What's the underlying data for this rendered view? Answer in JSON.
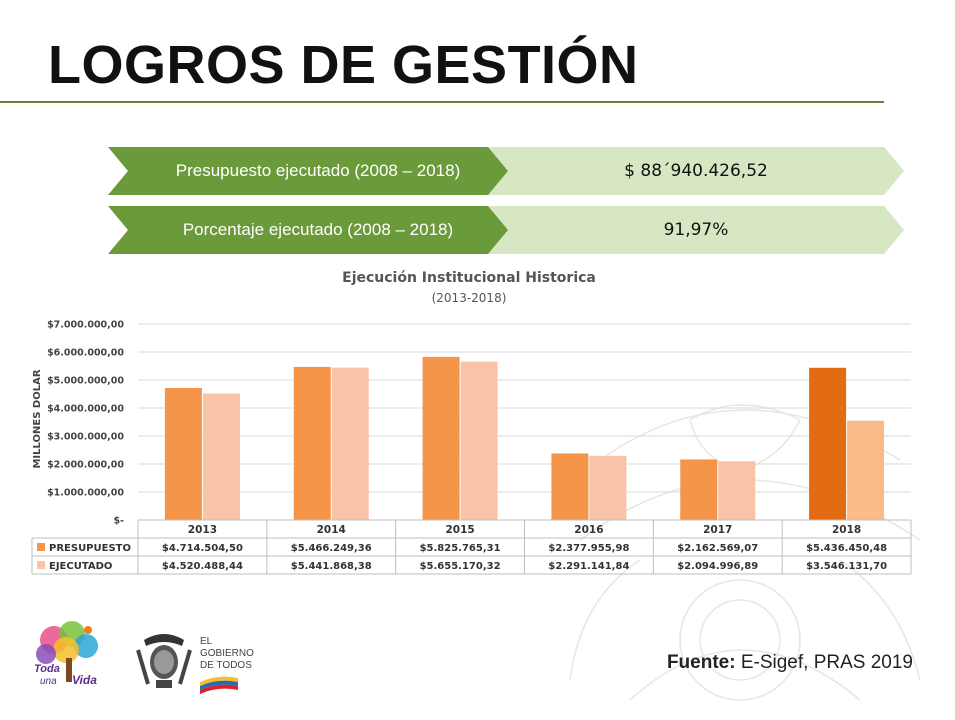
{
  "title": "LOGROS DE GESTIÓN",
  "kpis": [
    {
      "label": "Presupuesto ejecutado (2008 – 2018)",
      "value": "$  88´940.426,52"
    },
    {
      "label": "Porcentaje ejecutado (2008 – 2018)",
      "value": "91,97%"
    }
  ],
  "colors": {
    "kpi_dark": "#6b9a3a",
    "kpi_light": "#d8e7c3",
    "presupuesto": "#f5954a",
    "presupuesto_highlight": "#e36c12",
    "ejecutado": "#f9c3a8",
    "ejecutado_highlight": "#f9bb8a",
    "rule": "#6f7f3e"
  },
  "chart_data": {
    "type": "bar",
    "title": "Ejecución Institucional Historica",
    "subtitle": "(2013-2018)",
    "ylabel": "MILLONES DOLAR",
    "xlabel": "",
    "ylim": [
      0,
      7000000
    ],
    "grid": true,
    "yticks": [
      "$-",
      "$1.000.000,00",
      "$2.000.000,00",
      "$3.000.000,00",
      "$4.000.000,00",
      "$5.000.000,00",
      "$6.000.000,00",
      "$7.000.000,00"
    ],
    "categories": [
      "2013",
      "2014",
      "2015",
      "2016",
      "2017",
      "2018"
    ],
    "series": [
      {
        "name": "PRESUPUESTO",
        "values": [
          4714504.5,
          5466249.36,
          5825765.31,
          2377955.98,
          2162569.07,
          5436450.48
        ],
        "labels": [
          "$4.714.504,50",
          "$5.466.249,36",
          "$5.825.765,31",
          "$2.377.955,98",
          "$2.162.569,07",
          "$5.436.450,48"
        ]
      },
      {
        "name": "EJECUTADO",
        "values": [
          4520488.44,
          5441868.38,
          5655170.32,
          2291141.84,
          2094996.89,
          3546131.7
        ],
        "labels": [
          "$4.520.488,44",
          "$5.441.868,38",
          "$5.655.170,32",
          "$2.291.141,84",
          "$2.094.996,89",
          "$3.546.131,70"
        ]
      }
    ],
    "legend": "table-below"
  },
  "footer": {
    "source_label": "Fuente:",
    "source_text": " E-Sigef, PRAS 2019"
  },
  "logos": {
    "toda_line1": "Toda",
    "toda_line2": "una",
    "toda_line3": "Vida",
    "gob_line1": "EL",
    "gob_line2": "GOBIERNO",
    "gob_line3": "DE TODOS"
  }
}
